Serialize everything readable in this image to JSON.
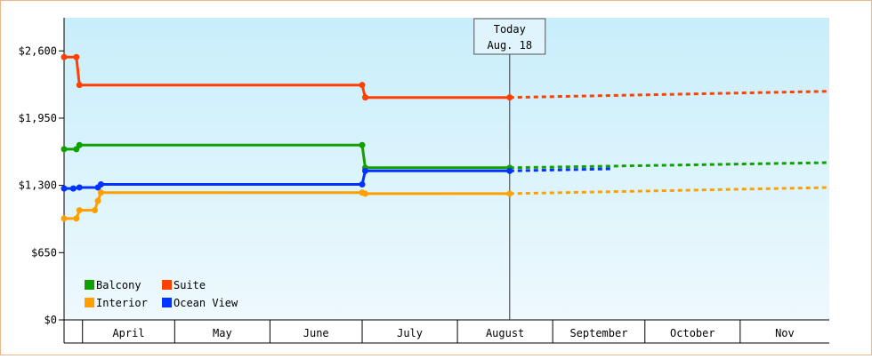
{
  "chart_data": {
    "type": "line",
    "ylim": [
      0,
      2920
    ],
    "y_ticks": [
      {
        "value": 0,
        "label": "$0"
      },
      {
        "value": 650,
        "label": "$650"
      },
      {
        "value": 1300,
        "label": "$1,300"
      },
      {
        "value": 1950,
        "label": "$1,950"
      },
      {
        "value": 2600,
        "label": "$2,600"
      }
    ],
    "x_domain": [
      "2016-03-26",
      "2016-11-30"
    ],
    "months": [
      {
        "label": "April",
        "start": "2016-04-01",
        "end": "2016-05-01"
      },
      {
        "label": "May",
        "start": "2016-05-01",
        "end": "2016-06-01"
      },
      {
        "label": "June",
        "start": "2016-06-01",
        "end": "2016-07-01"
      },
      {
        "label": "July",
        "start": "2016-07-01",
        "end": "2016-08-01"
      },
      {
        "label": "August",
        "start": "2016-08-01",
        "end": "2016-09-01"
      },
      {
        "label": "September",
        "start": "2016-09-01",
        "end": "2016-10-01"
      },
      {
        "label": "October",
        "start": "2016-10-01",
        "end": "2016-11-01"
      },
      {
        "label": "Nov",
        "start": "2016-11-01",
        "end": "2016-11-30"
      }
    ],
    "today": {
      "date": "2016-08-18",
      "line1": "Today",
      "line2": "Aug. 18"
    },
    "grid": false,
    "legend_position": "bottom-left",
    "series": [
      {
        "name": "Suite",
        "color": "#ff4000",
        "points": [
          [
            "2016-03-26",
            2540
          ],
          [
            "2016-03-30",
            2540
          ],
          [
            "2016-03-31",
            2270
          ],
          [
            "2016-07-01",
            2270
          ],
          [
            "2016-07-02",
            2150
          ],
          [
            "2016-08-18",
            2150
          ]
        ],
        "forecast": [
          [
            "2016-08-18",
            2150
          ],
          [
            "2016-11-30",
            2210
          ]
        ]
      },
      {
        "name": "Balcony",
        "color": "#11a000",
        "points": [
          [
            "2016-03-26",
            1650
          ],
          [
            "2016-03-30",
            1650
          ],
          [
            "2016-03-31",
            1690
          ],
          [
            "2016-07-01",
            1690
          ],
          [
            "2016-07-02",
            1470
          ],
          [
            "2016-08-18",
            1470
          ]
        ],
        "forecast": [
          [
            "2016-08-18",
            1470
          ],
          [
            "2016-11-30",
            1520
          ]
        ]
      },
      {
        "name": "Ocean View",
        "color": "#0033ff",
        "points": [
          [
            "2016-03-26",
            1270
          ],
          [
            "2016-03-29",
            1270
          ],
          [
            "2016-03-31",
            1280
          ],
          [
            "2016-04-06",
            1280
          ],
          [
            "2016-04-07",
            1310
          ],
          [
            "2016-07-01",
            1310
          ],
          [
            "2016-07-02",
            1440
          ],
          [
            "2016-08-18",
            1440
          ]
        ],
        "forecast": [
          [
            "2016-08-18",
            1440
          ],
          [
            "2016-09-20",
            1460
          ]
        ]
      },
      {
        "name": "Interior",
        "color": "#ffa000",
        "points": [
          [
            "2016-03-26",
            980
          ],
          [
            "2016-03-30",
            980
          ],
          [
            "2016-03-31",
            1060
          ],
          [
            "2016-04-05",
            1060
          ],
          [
            "2016-04-06",
            1150
          ],
          [
            "2016-04-07",
            1230
          ],
          [
            "2016-07-01",
            1230
          ],
          [
            "2016-07-02",
            1220
          ],
          [
            "2016-08-18",
            1220
          ]
        ],
        "forecast": [
          [
            "2016-08-18",
            1220
          ],
          [
            "2016-11-30",
            1280
          ]
        ]
      }
    ],
    "legend": [
      {
        "name": "Balcony",
        "color": "#11a000"
      },
      {
        "name": "Suite",
        "color": "#ff4000"
      },
      {
        "name": "Interior",
        "color": "#ffa000"
      },
      {
        "name": "Ocean View",
        "color": "#0033ff"
      }
    ]
  }
}
